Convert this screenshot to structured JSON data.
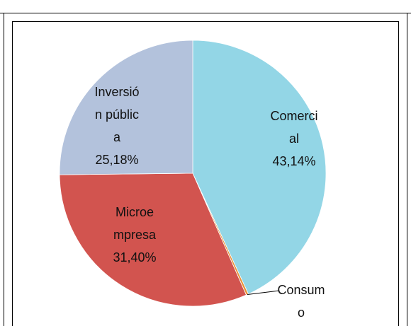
{
  "chart_data": {
    "type": "pie",
    "categories": [
      "Comercial",
      "Consumo",
      "Microempresa",
      "Inversión pública"
    ],
    "values": [
      43.14,
      0.28,
      31.4,
      25.18
    ],
    "value_labels": [
      "43,14%",
      null,
      "31,40%",
      "25,18%"
    ],
    "colors": [
      "#93d6e6",
      "#e8923a",
      "#d2544f",
      "#b3c2dc"
    ]
  }
}
